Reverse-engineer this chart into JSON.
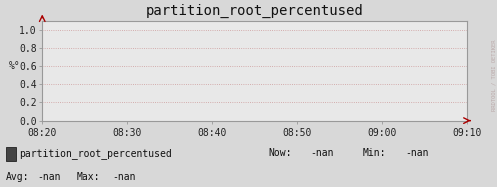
{
  "title": "partition_root_percentused",
  "ylabel": "%°",
  "bg_color": "#d8d8d8",
  "plot_bg_color": "#e8e8e8",
  "grid_color": "#cc9999",
  "border_color": "#999999",
  "arrow_color": "#aa0000",
  "yticks": [
    0.0,
    0.2,
    0.4,
    0.6,
    0.8,
    1.0
  ],
  "ylim": [
    0.0,
    1.1
  ],
  "xtick_labels": [
    "08:20",
    "08:30",
    "08:40",
    "08:50",
    "09:00",
    "09:10"
  ],
  "legend_label": "partition_root_percentused",
  "legend_box_color": "#444444",
  "legend_box_edge": "#222222",
  "now_val": "-nan",
  "min_val": "-nan",
  "avg_val": "-nan",
  "max_val": "-nan",
  "title_fontsize": 10,
  "axis_fontsize": 7,
  "legend_fontsize": 7,
  "watermark": "RRDTOOL / TOBI OETIKER",
  "watermark_color": "#bbaaaa",
  "watermark_fontsize": 4
}
